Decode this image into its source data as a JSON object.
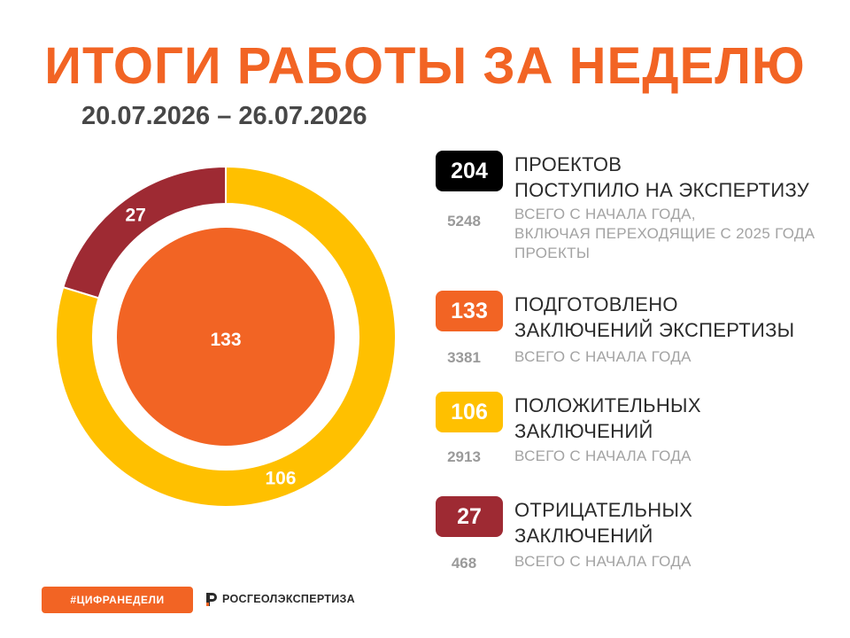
{
  "page": {
    "title": "ИТОГИ РАБОТЫ ЗА НЕДЕЛЮ",
    "dates": "20.07.2026 – 26.07.2026"
  },
  "stats": [
    {
      "value": "204",
      "color": "#000000",
      "heading": [
        "ПРОЕКТОВ",
        "ПОСТУПИЛО НА ЭКСПЕРТИЗУ"
      ],
      "total": "5248",
      "total_desc": [
        "ВСЕГО С НАЧАЛА ГОДА,",
        "ВКЛЮЧАЯ ПЕРЕХОДЯЩИЕ С 2025 ГОДА",
        "ПРОЕКТЫ"
      ]
    },
    {
      "value": "133",
      "color": "#f26424",
      "heading": [
        "ПОДГОТОВЛЕНО",
        "ЗАКЛЮЧЕНИЙ ЭКСПЕРТИЗЫ"
      ],
      "total": "3381",
      "total_desc": [
        "ВСЕГО С НАЧАЛА ГОДА"
      ]
    },
    {
      "value": "106",
      "color": "#ffc000",
      "heading": [
        "ПОЛОЖИТЕЛЬНЫХ",
        "ЗАКЛЮЧЕНИЙ"
      ],
      "total": "2913",
      "total_desc": [
        "ВСЕГО С НАЧАЛА ГОДА"
      ]
    },
    {
      "value": "27",
      "color": "#9e2a33",
      "heading": [
        "ОТРИЦАТЕЛЬНЫХ",
        "ЗАКЛЮЧЕНИЙ"
      ],
      "total": "468",
      "total_desc": [
        "ВСЕГО С НАЧАЛА ГОДА"
      ]
    }
  ],
  "chart_data": {
    "type": "pie",
    "outer_ring": [
      {
        "label": "106",
        "value": 106,
        "color": "#ffc000"
      },
      {
        "label": "27",
        "value": 27,
        "color": "#9e2a33"
      }
    ],
    "inner": {
      "label": "133",
      "value": 133,
      "color": "#f26424"
    }
  },
  "footer": {
    "hashtag": "#ЦИФРАНЕДЕЛИ",
    "brand": "РОСГЕОЛЭКСПЕРТИЗА",
    "brand_icon": "rosgeolexpertiza-logo-icon"
  }
}
